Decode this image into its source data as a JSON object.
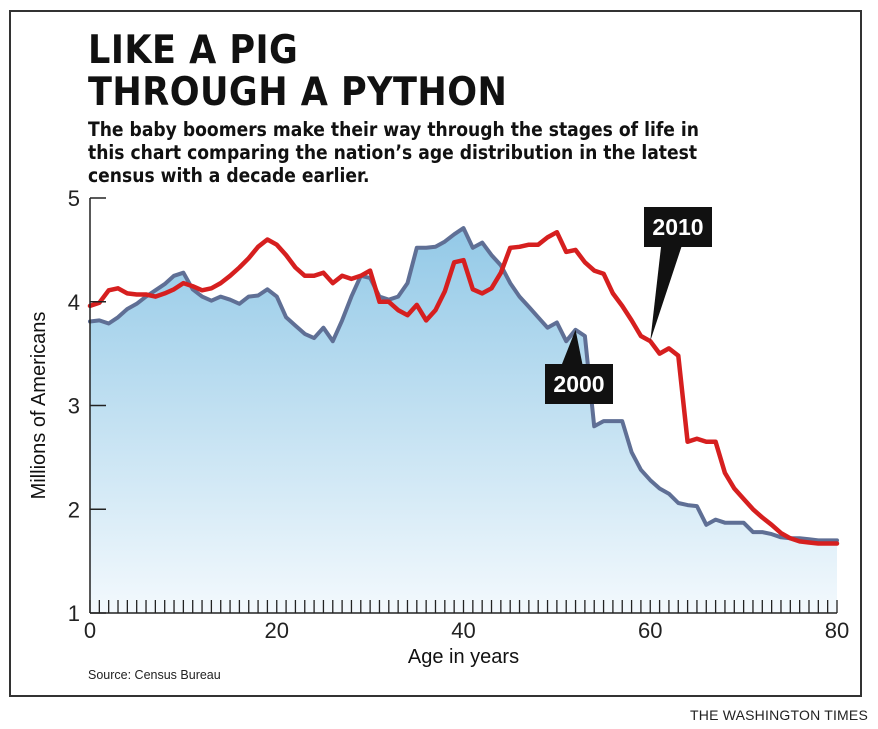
{
  "title_lines": [
    "LIKE A PIG",
    "THROUGH A PYTHON"
  ],
  "subtitle_lines": [
    "The baby boomers make their way through the stages of life in",
    "this chart comparing the nation’s age distribution in the latest",
    "census with a decade earlier."
  ],
  "source": "Source: Census Bureau",
  "credit": "THE WASHINGTON TIMES",
  "colors": {
    "series_2010": "#d61f1f",
    "series_2000": "#5f6f95",
    "fill_top": "#93c9e7",
    "fill_bottom": "#f3f9fd",
    "label_bg": "#111111"
  },
  "chart_data": {
    "type": "line",
    "xlabel": "Age in years",
    "ylabel": "Millions of Americans",
    "xlim": [
      0,
      80
    ],
    "ylim": [
      1,
      5
    ],
    "xticks": [
      0,
      20,
      40,
      60,
      80
    ],
    "yticks": [
      1,
      2,
      3,
      4,
      5
    ],
    "x": [
      0,
      1,
      2,
      3,
      4,
      5,
      6,
      7,
      8,
      9,
      10,
      11,
      12,
      13,
      14,
      15,
      16,
      17,
      18,
      19,
      20,
      21,
      22,
      23,
      24,
      25,
      26,
      27,
      28,
      29,
      30,
      31,
      32,
      33,
      34,
      35,
      36,
      37,
      38,
      39,
      40,
      41,
      42,
      43,
      44,
      45,
      46,
      47,
      48,
      49,
      50,
      51,
      52,
      53,
      54,
      55,
      56,
      57,
      58,
      59,
      60,
      61,
      62,
      63,
      64,
      65,
      66,
      67,
      68,
      69,
      70,
      71,
      72,
      73,
      74,
      75,
      76,
      77,
      78,
      79,
      80
    ],
    "series": [
      {
        "name": "2000",
        "style": "line with shaded area",
        "values": [
          3.81,
          3.82,
          3.79,
          3.85,
          3.93,
          3.98,
          4.05,
          4.11,
          4.17,
          4.25,
          4.28,
          4.12,
          4.05,
          4.01,
          4.05,
          4.02,
          3.98,
          4.05,
          4.06,
          4.12,
          4.05,
          3.85,
          3.77,
          3.69,
          3.65,
          3.75,
          3.62,
          3.82,
          4.05,
          4.25,
          4.23,
          4.05,
          4.02,
          4.05,
          4.18,
          4.52,
          4.52,
          4.53,
          4.58,
          4.65,
          4.71,
          4.52,
          4.57,
          4.45,
          4.35,
          4.18,
          4.05,
          3.95,
          3.85,
          3.75,
          3.8,
          3.62,
          3.73,
          3.67,
          2.8,
          2.85,
          2.85,
          2.85,
          2.55,
          2.38,
          2.28,
          2.2,
          2.15,
          2.06,
          2.04,
          2.03,
          1.85,
          1.9,
          1.87,
          1.87,
          1.87,
          1.78,
          1.78,
          1.76,
          1.73,
          1.72,
          1.72,
          1.71,
          1.7,
          1.7,
          1.7
        ]
      },
      {
        "name": "2010",
        "style": "line",
        "values": [
          3.96,
          3.99,
          4.11,
          4.13,
          4.08,
          4.07,
          4.07,
          4.05,
          4.08,
          4.12,
          4.18,
          4.15,
          4.11,
          4.13,
          4.18,
          4.25,
          4.33,
          4.42,
          4.53,
          4.6,
          4.55,
          4.45,
          4.33,
          4.25,
          4.25,
          4.28,
          4.18,
          4.25,
          4.22,
          4.25,
          4.3,
          4.0,
          4.0,
          3.92,
          3.87,
          3.97,
          3.82,
          3.92,
          4.1,
          4.38,
          4.4,
          4.12,
          4.08,
          4.13,
          4.28,
          4.52,
          4.53,
          4.55,
          4.55,
          4.62,
          4.67,
          4.48,
          4.5,
          4.38,
          4.3,
          4.27,
          4.08,
          3.96,
          3.82,
          3.67,
          3.62,
          3.5,
          3.55,
          3.48,
          2.65,
          2.68,
          2.65,
          2.65,
          2.35,
          2.2,
          2.1,
          2.0,
          1.92,
          1.85,
          1.77,
          1.72,
          1.69,
          1.68,
          1.67,
          1.67,
          1.67
        ]
      }
    ],
    "annotations": [
      {
        "text": "2010",
        "series": "2010",
        "points_to_x": 60
      },
      {
        "text": "2000",
        "series": "2000",
        "points_to_x": 52
      }
    ],
    "grid": false,
    "legend": "none"
  }
}
